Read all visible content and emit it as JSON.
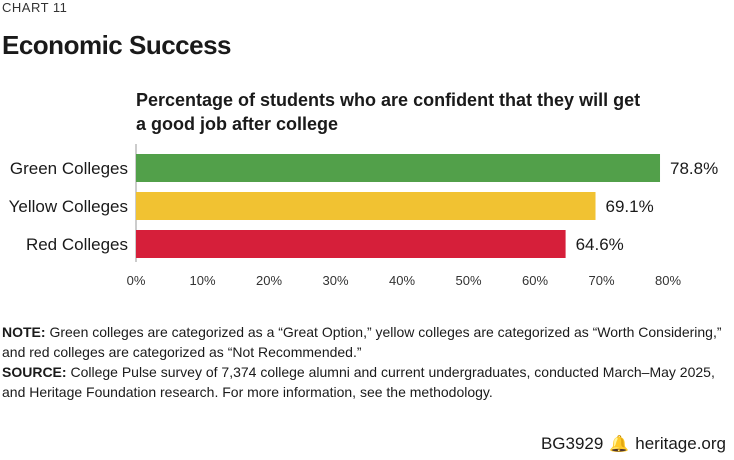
{
  "header": {
    "chart_number": "CHART 11",
    "title": "Economic Success",
    "subtitle_line1": "Percentage of students who are confident that they will get",
    "subtitle_line2": "a good job after college"
  },
  "chart_data": {
    "type": "bar",
    "orientation": "horizontal",
    "title": "Percentage of students who are confident that they will get a good job after college",
    "categories": [
      "Green Colleges",
      "Yellow Colleges",
      "Red Colleges"
    ],
    "values": [
      78.8,
      69.1,
      64.6
    ],
    "value_labels": [
      "78.8%",
      "69.1%",
      "64.6%"
    ],
    "colors": [
      "#52a04a",
      "#f1c232",
      "#d61f3a"
    ],
    "xlim": [
      0,
      80
    ],
    "xticks": [
      0,
      10,
      20,
      30,
      40,
      50,
      60,
      70,
      80
    ],
    "xtick_labels": [
      "0%",
      "10%",
      "20%",
      "30%",
      "40%",
      "50%",
      "60%",
      "70%",
      "80%"
    ],
    "xlabel": "",
    "ylabel": "",
    "grid": false
  },
  "notes": {
    "note_label": "NOTE:",
    "note_text": "Green colleges are categorized as a “Great Option,” yellow colleges are categorized as “Worth Considering,” and red colleges are categorized as “Not Recommended.”",
    "source_label": "SOURCE:",
    "source_text": "College Pulse survey of 7,374 college alumni and current undergraduates, conducted March–May 2025, and Heritage Foundation research. For more information, see the methodology."
  },
  "footer": {
    "report_id": "BG3929",
    "icon": "liberty-bell-icon",
    "site": "heritage.org"
  }
}
